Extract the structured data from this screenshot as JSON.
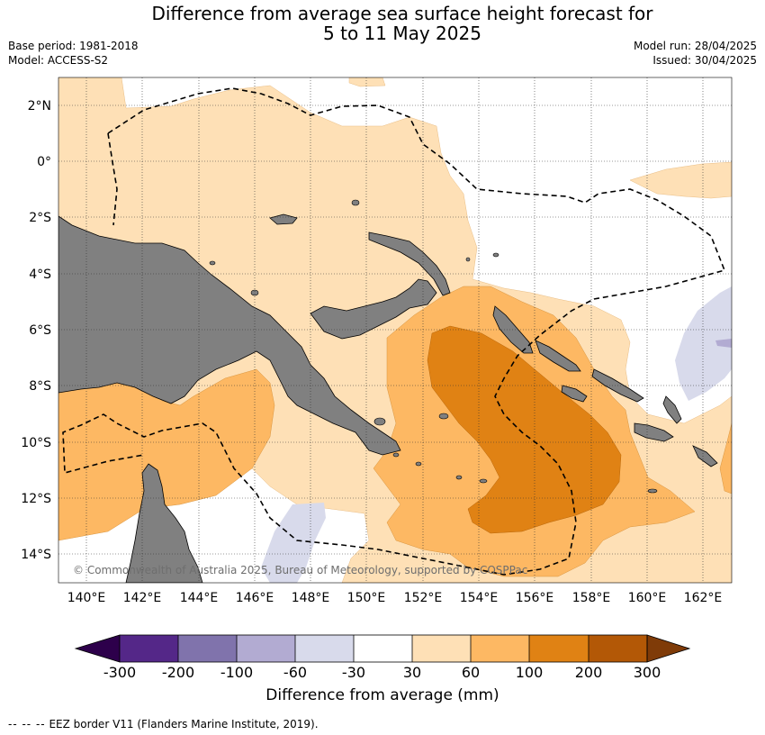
{
  "title": {
    "line1": "Difference from average sea surface height forecast for",
    "line2": "5 to 11 May 2025"
  },
  "meta_left": {
    "base_period": "Base period: 1981-2018",
    "model": "Model: ACCESS-S2"
  },
  "meta_right": {
    "model_run": "Model run: 28/04/2025",
    "issued": "Issued: 30/04/2025"
  },
  "map": {
    "lat_labels": [
      "2°N",
      "0°",
      "2°S",
      "4°S",
      "6°S",
      "8°S",
      "10°S",
      "12°S",
      "14°S"
    ],
    "lon_labels": [
      "140°E",
      "142°E",
      "144°E",
      "146°E",
      "148°E",
      "150°E",
      "152°E",
      "154°E",
      "156°E",
      "158°E",
      "160°E",
      "162°E"
    ],
    "copyright": "© Commonwealth of Australia 2025, Bureau of Meteorology, supported by COSPPac",
    "land_color": "#808080",
    "grid": true
  },
  "colorbar": {
    "ticks": [
      "-300",
      "-200",
      "-100",
      "-60",
      "-30",
      "30",
      "60",
      "100",
      "200",
      "300"
    ],
    "colors": [
      "#2d004b",
      "#542788",
      "#8073ac",
      "#b2abd2",
      "#d8daeb",
      "#ffffff",
      "#fee0b6",
      "#fdb863",
      "#e08214",
      "#b35806",
      "#7f3b08"
    ],
    "label": "Difference from average (mm)"
  },
  "legend": {
    "symbol": "-- -- --",
    "text": "EEZ border V11 (Flanders Marine Institute, 2019)."
  }
}
